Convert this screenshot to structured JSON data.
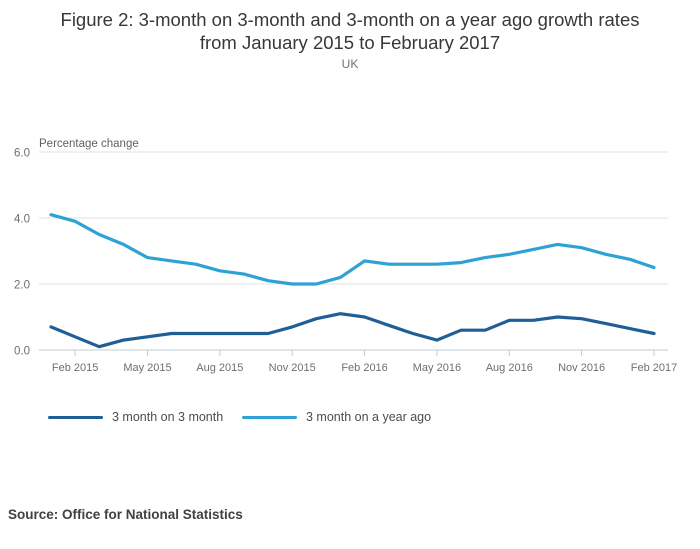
{
  "header": {
    "title_line1": "Figure 2: 3-month on 3-month and 3-month on a year ago growth rates",
    "title_line2": "from January 2015 to February 2017",
    "subtitle": "UK"
  },
  "source": {
    "text": "Source: Office for National Statistics"
  },
  "chart_data": {
    "type": "line",
    "title": "Figure 2: 3-month on 3-month and 3-month on a year ago growth rates from January 2015 to February 2017",
    "subtitle": "UK",
    "ylabel": "Percentage change",
    "xlabel": "",
    "ylim": [
      0,
      6
    ],
    "yticks": [
      0.0,
      2.0,
      4.0,
      6.0
    ],
    "ytick_labels": [
      "0.0",
      "2.0",
      "4.0",
      "6.0"
    ],
    "grid": "horizontal",
    "legend_position": "bottom-left",
    "x": [
      "Jan 2015",
      "Feb 2015",
      "Mar 2015",
      "Apr 2015",
      "May 2015",
      "Jun 2015",
      "Jul 2015",
      "Aug 2015",
      "Sep 2015",
      "Oct 2015",
      "Nov 2015",
      "Dec 2015",
      "Jan 2016",
      "Feb 2016",
      "Mar 2016",
      "Apr 2016",
      "May 2016",
      "Jun 2016",
      "Jul 2016",
      "Aug 2016",
      "Sep 2016",
      "Oct 2016",
      "Nov 2016",
      "Dec 2016",
      "Jan 2017",
      "Feb 2017"
    ],
    "xtick_labels": [
      "Feb 2015",
      "May 2015",
      "Aug 2015",
      "Nov 2015",
      "Feb 2016",
      "May 2016",
      "Aug 2016",
      "Nov 2016",
      "Feb 2017"
    ],
    "xtick_month_indices": [
      1,
      4,
      7,
      10,
      13,
      16,
      19,
      22,
      25
    ],
    "series": [
      {
        "name": "3 month on 3 month",
        "color": "#205f96",
        "values": [
          0.7,
          0.4,
          0.1,
          0.3,
          0.4,
          0.5,
          0.5,
          0.5,
          0.5,
          0.5,
          0.7,
          0.95,
          1.1,
          1.0,
          0.75,
          0.5,
          0.3,
          0.6,
          0.6,
          0.9,
          0.9,
          1.0,
          0.95,
          0.8,
          0.65,
          0.5
        ]
      },
      {
        "name": "3 month on a year ago",
        "color": "#2fa2d4",
        "values": [
          4.1,
          3.9,
          3.5,
          3.2,
          2.8,
          2.7,
          2.6,
          2.4,
          2.3,
          2.1,
          2.0,
          2.0,
          2.2,
          2.7,
          2.6,
          2.6,
          2.6,
          2.65,
          2.8,
          2.9,
          3.05,
          3.2,
          3.1,
          2.9,
          2.75,
          2.5
        ]
      }
    ],
    "colors": {
      "grid_line": "#e2e2e2",
      "axis_line": "#c3ccd3",
      "tick_text": "#6f6f6f",
      "axis_label_text": "#5f5f5f"
    }
  }
}
